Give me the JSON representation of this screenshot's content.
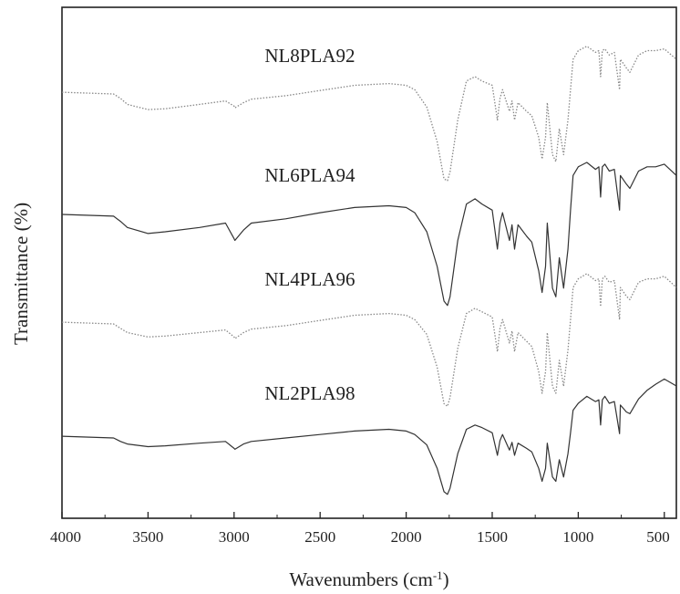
{
  "chart_data": {
    "type": "line",
    "title": "",
    "xlabel": "Wavenumbers (cm",
    "xlabel_sup": "-1",
    "xlabel_close": ")",
    "ylabel": "Transmittance (%)",
    "xlim": [
      4000,
      430
    ],
    "x_reversed": true,
    "y_ticks_shown": false,
    "grid": false,
    "legend": "inline-labels",
    "x_ticks": [
      4000,
      3500,
      3000,
      2500,
      2000,
      1500,
      1000,
      500
    ],
    "x_tick_labels": [
      "4000",
      "3500",
      "3000",
      "2500",
      "2000",
      "1500",
      "1000",
      "500"
    ],
    "series": [
      {
        "name": "NL8PLA92",
        "style": "dotted",
        "color": "#888888",
        "offset": 3,
        "label_x": 2560,
        "x": [
          4000,
          3700,
          3660,
          3620,
          3500,
          3400,
          3200,
          3050,
          3000,
          2995,
          2945,
          2900,
          2700,
          2500,
          2300,
          2100,
          2000,
          1950,
          1880,
          1820,
          1780,
          1760,
          1745,
          1700,
          1650,
          1600,
          1560,
          1500,
          1470,
          1455,
          1440,
          1400,
          1385,
          1370,
          1350,
          1300,
          1270,
          1230,
          1210,
          1190,
          1180,
          1150,
          1130,
          1110,
          1085,
          1060,
          1045,
          1030,
          1000,
          950,
          900,
          880,
          870,
          860,
          845,
          820,
          790,
          760,
          755,
          720,
          700,
          650,
          600,
          550,
          500,
          430
        ],
        "y": [
          0.02,
          0.0,
          -0.05,
          -0.12,
          -0.18,
          -0.17,
          -0.12,
          -0.08,
          -0.14,
          -0.16,
          -0.1,
          -0.06,
          -0.02,
          0.04,
          0.1,
          0.12,
          0.1,
          0.05,
          -0.15,
          -0.55,
          -0.98,
          -1.0,
          -0.9,
          -0.3,
          0.15,
          0.2,
          0.15,
          0.1,
          -0.3,
          -0.05,
          0.05,
          -0.2,
          -0.08,
          -0.3,
          -0.1,
          -0.2,
          -0.25,
          -0.5,
          -0.75,
          -0.5,
          -0.1,
          -0.7,
          -0.78,
          -0.4,
          -0.7,
          -0.3,
          0.05,
          0.4,
          0.5,
          0.55,
          0.48,
          0.5,
          0.2,
          0.5,
          0.52,
          0.45,
          0.48,
          0.05,
          0.4,
          0.3,
          0.25,
          0.45,
          0.5,
          0.5,
          0.52,
          0.4
        ]
      },
      {
        "name": "NL6PLA94",
        "style": "solid",
        "color": "#333333",
        "offset": 2,
        "label_x": 2560,
        "x": [
          4000,
          3700,
          3660,
          3620,
          3500,
          3400,
          3200,
          3050,
          3000,
          2995,
          2945,
          2900,
          2700,
          2500,
          2300,
          2100,
          2000,
          1950,
          1880,
          1820,
          1780,
          1760,
          1745,
          1700,
          1650,
          1600,
          1560,
          1500,
          1470,
          1455,
          1440,
          1400,
          1385,
          1370,
          1350,
          1300,
          1270,
          1230,
          1210,
          1190,
          1180,
          1150,
          1130,
          1110,
          1085,
          1060,
          1045,
          1030,
          1000,
          950,
          900,
          880,
          870,
          860,
          845,
          820,
          790,
          760,
          755,
          720,
          700,
          650,
          600,
          550,
          500,
          430
        ],
        "y": [
          0.0,
          -0.02,
          -0.08,
          -0.15,
          -0.22,
          -0.2,
          -0.15,
          -0.1,
          -0.28,
          -0.3,
          -0.18,
          -0.1,
          -0.05,
          0.02,
          0.08,
          0.1,
          0.08,
          0.02,
          -0.2,
          -0.6,
          -1.0,
          -1.05,
          -0.95,
          -0.3,
          0.12,
          0.18,
          0.12,
          0.05,
          -0.4,
          -0.1,
          0.02,
          -0.3,
          -0.12,
          -0.4,
          -0.12,
          -0.25,
          -0.32,
          -0.65,
          -0.9,
          -0.6,
          -0.1,
          -0.85,
          -0.95,
          -0.5,
          -0.85,
          -0.4,
          0.05,
          0.45,
          0.55,
          0.6,
          0.52,
          0.55,
          0.2,
          0.55,
          0.58,
          0.5,
          0.52,
          0.05,
          0.45,
          0.35,
          0.3,
          0.5,
          0.55,
          0.55,
          0.58,
          0.45
        ]
      },
      {
        "name": "NL4PLA96",
        "style": "dotted",
        "color": "#888888",
        "offset": 1,
        "label_x": 2560,
        "x": [
          4000,
          3700,
          3660,
          3620,
          3500,
          3400,
          3200,
          3050,
          3000,
          2995,
          2945,
          2900,
          2700,
          2500,
          2300,
          2100,
          2000,
          1950,
          1880,
          1820,
          1780,
          1760,
          1745,
          1700,
          1650,
          1600,
          1560,
          1500,
          1470,
          1455,
          1440,
          1400,
          1385,
          1370,
          1350,
          1300,
          1270,
          1230,
          1210,
          1190,
          1180,
          1150,
          1130,
          1110,
          1085,
          1060,
          1045,
          1030,
          1000,
          950,
          900,
          880,
          870,
          860,
          845,
          820,
          790,
          760,
          755,
          720,
          700,
          650,
          600,
          550,
          500,
          430
        ],
        "y": [
          0.02,
          0.0,
          -0.05,
          -0.1,
          -0.15,
          -0.14,
          -0.1,
          -0.07,
          -0.15,
          -0.17,
          -0.1,
          -0.06,
          -0.02,
          0.04,
          0.1,
          0.12,
          0.1,
          0.05,
          -0.12,
          -0.5,
          -0.92,
          -0.95,
          -0.85,
          -0.28,
          0.12,
          0.18,
          0.14,
          0.08,
          -0.32,
          -0.05,
          0.05,
          -0.22,
          -0.08,
          -0.32,
          -0.1,
          -0.2,
          -0.26,
          -0.55,
          -0.8,
          -0.55,
          -0.1,
          -0.72,
          -0.8,
          -0.42,
          -0.72,
          -0.3,
          0.05,
          0.42,
          0.52,
          0.58,
          0.5,
          0.52,
          0.2,
          0.52,
          0.55,
          0.48,
          0.5,
          0.05,
          0.42,
          0.32,
          0.28,
          0.48,
          0.52,
          0.52,
          0.55,
          0.42
        ]
      },
      {
        "name": "NL2PLA98",
        "style": "solid",
        "color": "#333333",
        "offset": 0,
        "label_x": 2560,
        "x": [
          4000,
          3700,
          3660,
          3620,
          3500,
          3400,
          3200,
          3050,
          3000,
          2995,
          2945,
          2900,
          2700,
          2500,
          2300,
          2100,
          2000,
          1950,
          1880,
          1820,
          1780,
          1760,
          1745,
          1700,
          1650,
          1600,
          1560,
          1500,
          1470,
          1455,
          1440,
          1400,
          1385,
          1370,
          1350,
          1300,
          1270,
          1230,
          1210,
          1190,
          1180,
          1150,
          1130,
          1110,
          1085,
          1060,
          1045,
          1030,
          1000,
          950,
          900,
          880,
          870,
          860,
          845,
          820,
          790,
          760,
          755,
          720,
          700,
          650,
          600,
          550,
          500,
          430
        ],
        "y": [
          0.02,
          0.0,
          -0.04,
          -0.07,
          -0.1,
          -0.09,
          -0.06,
          -0.04,
          -0.12,
          -0.13,
          -0.07,
          -0.04,
          0.0,
          0.04,
          0.08,
          0.1,
          0.08,
          0.04,
          -0.08,
          -0.35,
          -0.62,
          -0.65,
          -0.58,
          -0.18,
          0.1,
          0.15,
          0.12,
          0.06,
          -0.2,
          -0.03,
          0.04,
          -0.14,
          -0.05,
          -0.2,
          -0.06,
          -0.12,
          -0.16,
          -0.35,
          -0.5,
          -0.35,
          -0.06,
          -0.45,
          -0.5,
          -0.25,
          -0.45,
          -0.18,
          0.06,
          0.32,
          0.4,
          0.48,
          0.42,
          0.44,
          0.15,
          0.44,
          0.48,
          0.4,
          0.42,
          0.05,
          0.38,
          0.3,
          0.28,
          0.45,
          0.55,
          0.62,
          0.68,
          0.6
        ]
      }
    ]
  }
}
